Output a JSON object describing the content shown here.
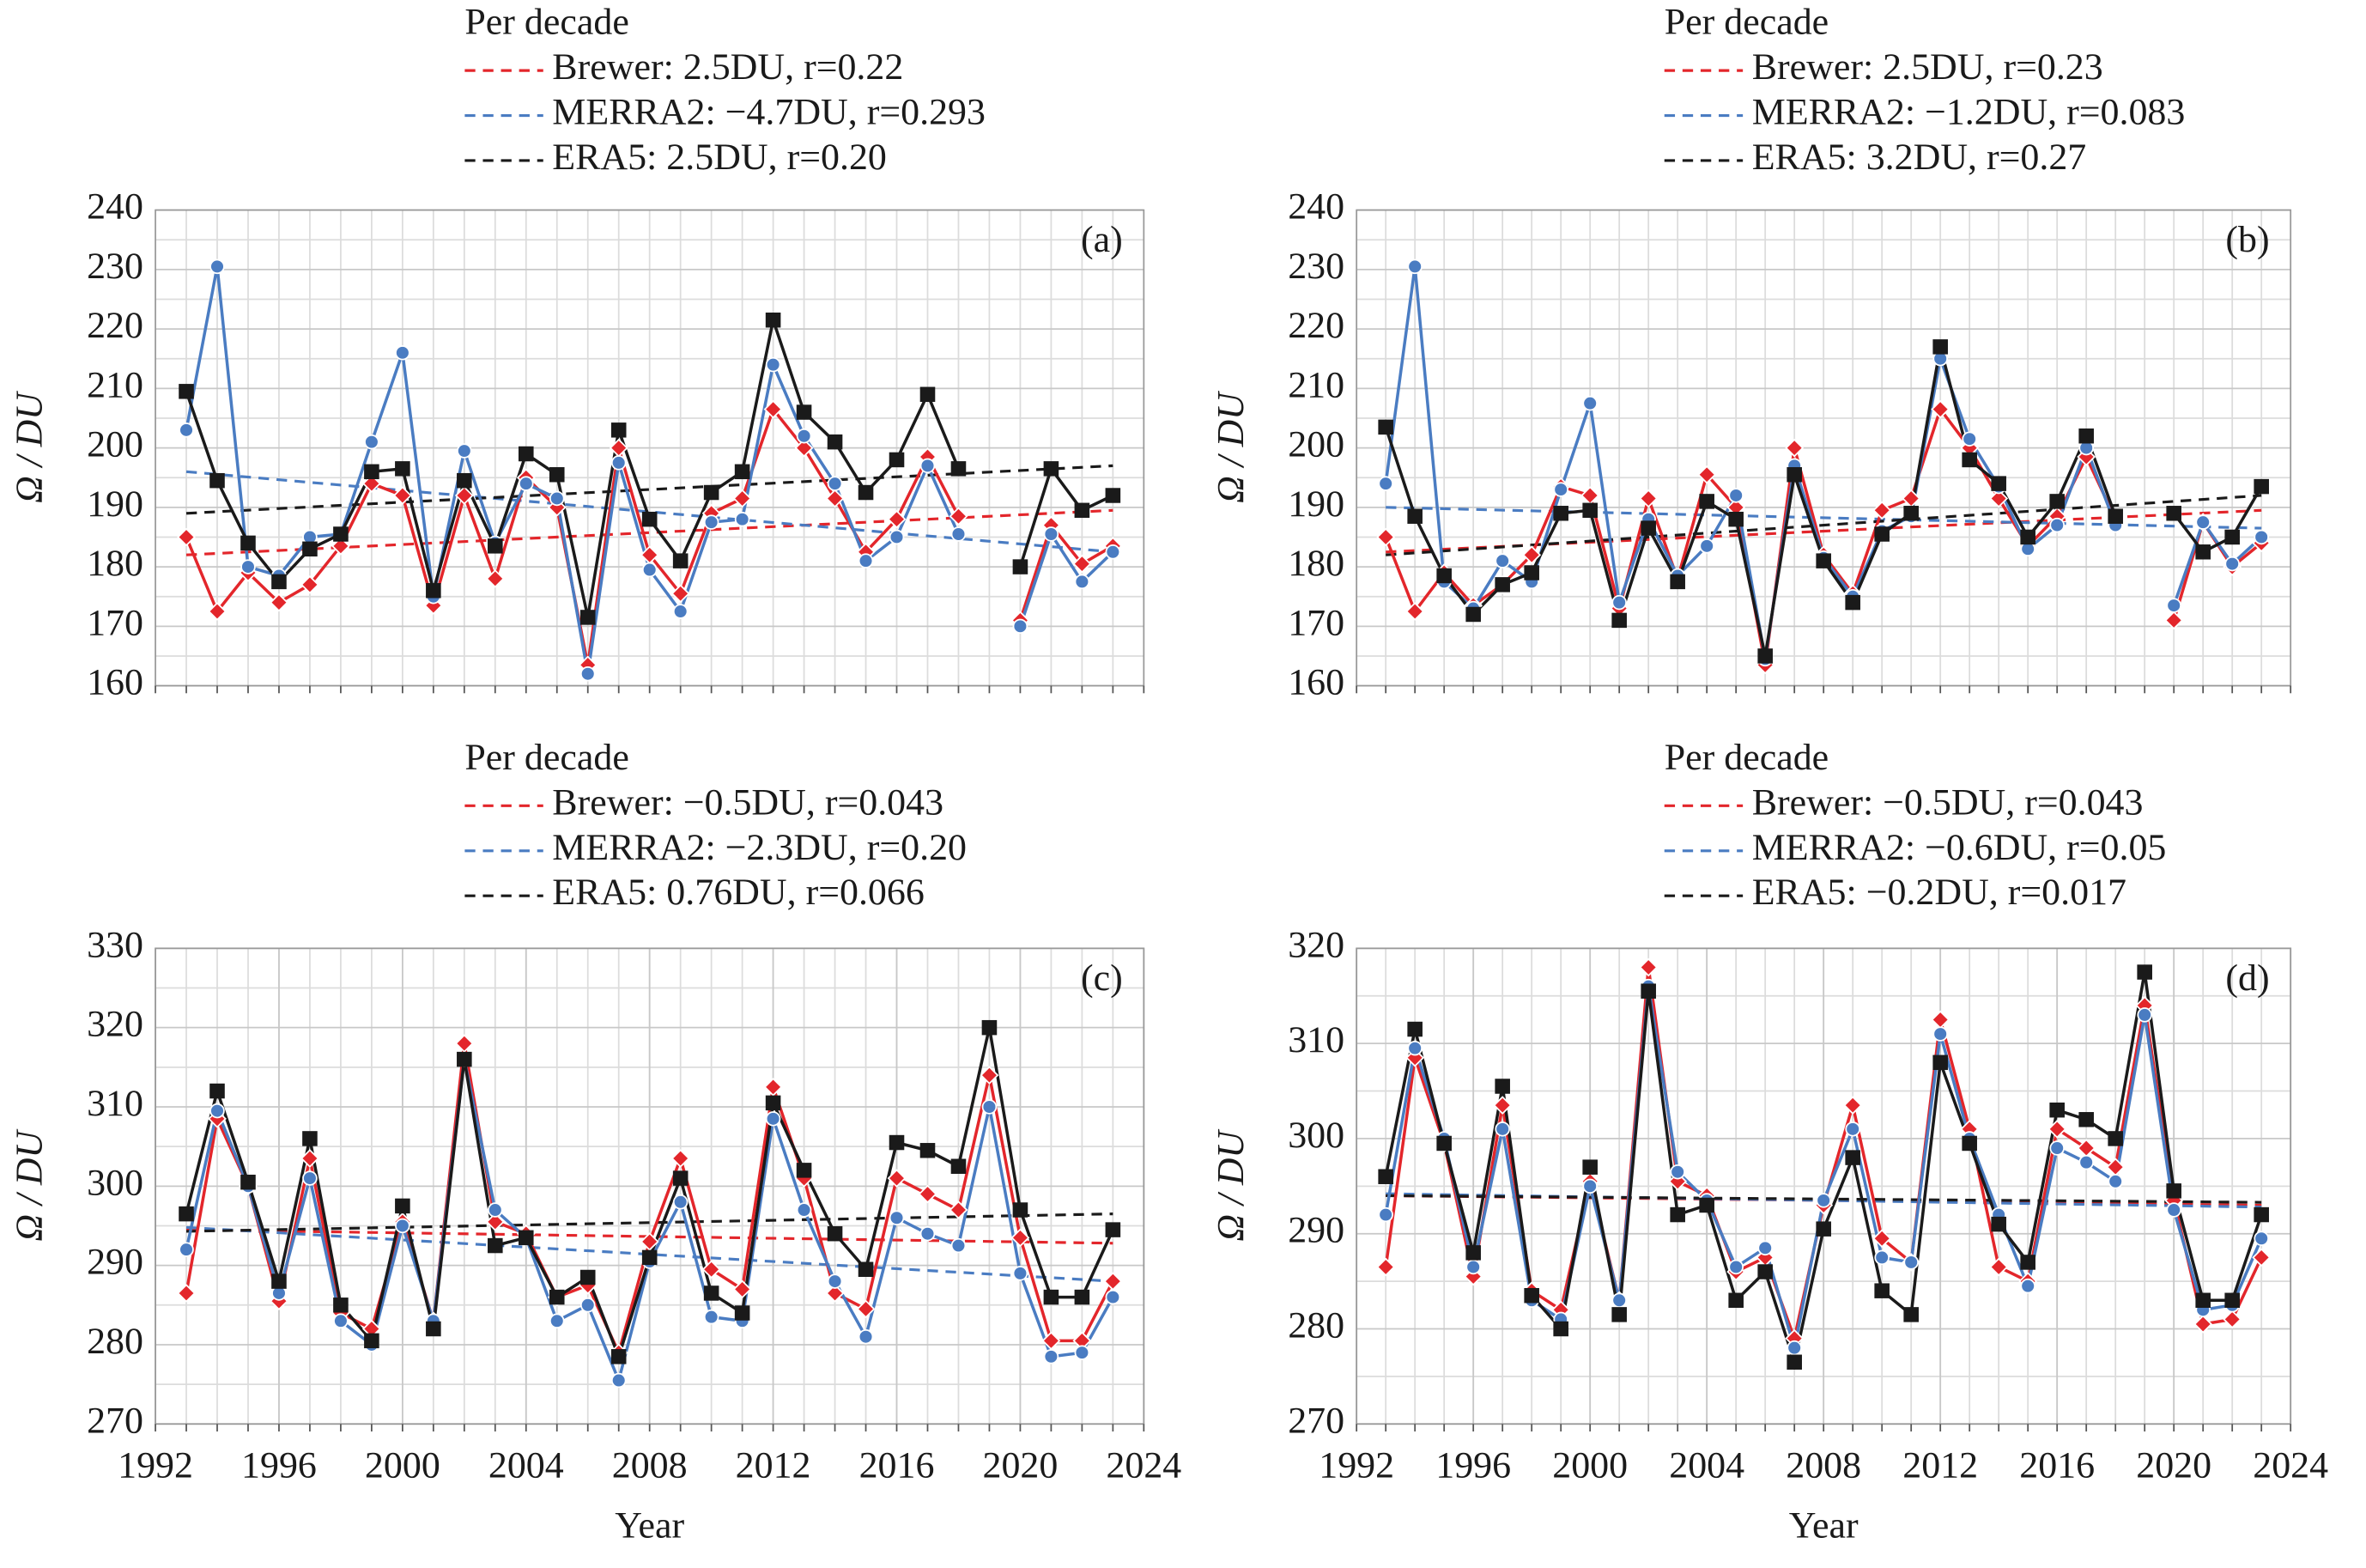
{
  "chart_data": [
    {
      "type": "line",
      "panel_label": "(a)",
      "legend_title": "Per decade",
      "ylabel": "Ω / DU",
      "x": [
        1993,
        1994,
        1995,
        1996,
        1997,
        1998,
        1999,
        2000,
        2001,
        2002,
        2003,
        2004,
        2005,
        2006,
        2007,
        2008,
        2009,
        2010,
        2011,
        2012,
        2013,
        2014,
        2015,
        2016,
        2017,
        2018,
        2019,
        2020,
        2021,
        2022,
        2023
      ],
      "xlim": [
        1992,
        2024
      ],
      "ylim": [
        160,
        240
      ],
      "yticks": [
        160,
        170,
        180,
        190,
        200,
        210,
        220,
        230,
        240
      ],
      "grid": true,
      "series": [
        {
          "label": "Brewer: 2.5DU, r=0.22",
          "color": "#e3262b",
          "marker": "diamond",
          "trend": [
            182,
            189.5
          ],
          "values": [
            185,
            172.5,
            179,
            174,
            177,
            183.5,
            194,
            192,
            173.5,
            192,
            178,
            195,
            190,
            163.5,
            200,
            182,
            175.5,
            189,
            191.5,
            206.5,
            200,
            191.5,
            182.5,
            188,
            198.5,
            188.5,
            null,
            171,
            187,
            180.5,
            183.5
          ]
        },
        {
          "label": "MERRA2: −4.7DU, r=0.293",
          "color": "#4a7cc2",
          "marker": "circle",
          "trend": [
            196,
            182.5
          ],
          "values": [
            203,
            230.5,
            180,
            178.5,
            185,
            185.5,
            201,
            216,
            175,
            199.5,
            184,
            194,
            191.5,
            162,
            197.5,
            179.5,
            172.5,
            187.5,
            188,
            214,
            202,
            194,
            181,
            185,
            197,
            185.5,
            null,
            170,
            185.5,
            177.5,
            182.5
          ]
        },
        {
          "label": "ERA5: 2.5DU, r=0.20",
          "color": "#1a1a1a",
          "marker": "square",
          "trend": [
            189,
            197
          ],
          "values": [
            209.5,
            194.5,
            184,
            177.5,
            183,
            185.5,
            196,
            196.5,
            176,
            194.5,
            183.5,
            199,
            195.5,
            171.5,
            203,
            188,
            181,
            192.5,
            196,
            221.5,
            206,
            201,
            192.5,
            198,
            209,
            196.5,
            null,
            180,
            196.5,
            189.5,
            192
          ]
        }
      ]
    },
    {
      "type": "line",
      "panel_label": "(b)",
      "legend_title": "Per decade",
      "ylabel": "Ω / DU",
      "x": [
        1993,
        1994,
        1995,
        1996,
        1997,
        1998,
        1999,
        2000,
        2001,
        2002,
        2003,
        2004,
        2005,
        2006,
        2007,
        2008,
        2009,
        2010,
        2011,
        2012,
        2013,
        2014,
        2015,
        2016,
        2017,
        2018,
        2019,
        2020,
        2021,
        2022,
        2023
      ],
      "xlim": [
        1992,
        2024
      ],
      "ylim": [
        160,
        240
      ],
      "yticks": [
        160,
        170,
        180,
        190,
        200,
        210,
        220,
        230,
        240
      ],
      "grid": true,
      "series": [
        {
          "label": "Brewer: 2.5DU, r=0.23",
          "color": "#e3262b",
          "marker": "diamond",
          "trend": [
            182.5,
            189.5
          ],
          "values": [
            185,
            172.5,
            179,
            173.5,
            177,
            182,
            193.5,
            192,
            173,
            191.5,
            178,
            195.5,
            190,
            163.5,
            200,
            182,
            175.5,
            189.5,
            191.5,
            206.5,
            200,
            191.5,
            183.5,
            188.5,
            198.5,
            188,
            null,
            171,
            187.5,
            180,
            184
          ]
        },
        {
          "label": "MERRA2: −1.2DU, r=0.083",
          "color": "#4a7cc2",
          "marker": "circle",
          "trend": [
            190,
            186.5
          ],
          "values": [
            194,
            230.5,
            177.5,
            173,
            181,
            177.5,
            193,
            207.5,
            174,
            188,
            178.5,
            183.5,
            192,
            164.5,
            197,
            181.5,
            175,
            186,
            188.5,
            215,
            201.5,
            193.5,
            183,
            187,
            200,
            187,
            null,
            173.5,
            187.5,
            180.5,
            185
          ]
        },
        {
          "label": "ERA5: 3.2DU, r=0.27",
          "color": "#1a1a1a",
          "marker": "square",
          "trend": [
            182,
            192
          ],
          "values": [
            203.5,
            188.5,
            178.5,
            172,
            177,
            179,
            189,
            189.5,
            171,
            186.5,
            177.5,
            191,
            188,
            165,
            195.5,
            181,
            174,
            185.5,
            189,
            217,
            198,
            194,
            185,
            191,
            202,
            188.5,
            null,
            189,
            182.5,
            185,
            193.5
          ]
        }
      ]
    },
    {
      "type": "line",
      "panel_label": "(c)",
      "legend_title": "Per decade",
      "ylabel": "Ω / DU",
      "xlabel": "Year",
      "x": [
        1993,
        1994,
        1995,
        1996,
        1997,
        1998,
        1999,
        2000,
        2001,
        2002,
        2003,
        2004,
        2005,
        2006,
        2007,
        2008,
        2009,
        2010,
        2011,
        2012,
        2013,
        2014,
        2015,
        2016,
        2017,
        2018,
        2019,
        2020,
        2021,
        2022,
        2023
      ],
      "xlim": [
        1992,
        2024
      ],
      "xticks": [
        1992,
        1996,
        2000,
        2004,
        2008,
        2012,
        2016,
        2020,
        2024
      ],
      "ylim": [
        270,
        330
      ],
      "yticks": [
        270,
        280,
        290,
        300,
        310,
        320,
        330
      ],
      "grid": true,
      "series": [
        {
          "label": "Brewer: −0.5DU, r=0.043",
          "color": "#e3262b",
          "marker": "diamond",
          "trend": [
            294.5,
            292.8
          ],
          "values": [
            286.5,
            308.5,
            300,
            285.5,
            303.5,
            284,
            282,
            295.5,
            283,
            318,
            295.5,
            294,
            286,
            287.5,
            279,
            293,
            303.5,
            289.5,
            287,
            312.5,
            301,
            286.5,
            284.5,
            301,
            299,
            297,
            314,
            293.5,
            280.5,
            280.5,
            288
          ]
        },
        {
          "label": "MERRA2: −2.3DU, r=0.20",
          "color": "#4a7cc2",
          "marker": "circle",
          "trend": [
            294.8,
            288
          ],
          "values": [
            292,
            309.5,
            300,
            286.5,
            301,
            283,
            280,
            295,
            283,
            316,
            297,
            293.5,
            283,
            285,
            275.5,
            290.5,
            298,
            283.5,
            283,
            308.5,
            297,
            288,
            281,
            296,
            294,
            292.5,
            310,
            289,
            278.5,
            279,
            286
          ]
        },
        {
          "label": "ERA5: 0.76DU, r=0.066",
          "color": "#1a1a1a",
          "marker": "square",
          "trend": [
            294.3,
            296.5
          ],
          "values": [
            296.5,
            312,
            300.5,
            288,
            306,
            285,
            280.5,
            297.5,
            282,
            316,
            292.5,
            293.5,
            286,
            288.5,
            278.5,
            291,
            301,
            286.5,
            284,
            310.5,
            302,
            294,
            289.5,
            305.5,
            304.5,
            302.5,
            320,
            297,
            286,
            286,
            294.5
          ]
        }
      ]
    },
    {
      "type": "line",
      "panel_label": "(d)",
      "legend_title": "Per decade",
      "ylabel": "Ω / DU",
      "xlabel": "Year",
      "x": [
        1993,
        1994,
        1995,
        1996,
        1997,
        1998,
        1999,
        2000,
        2001,
        2002,
        2003,
        2004,
        2005,
        2006,
        2007,
        2008,
        2009,
        2010,
        2011,
        2012,
        2013,
        2014,
        2015,
        2016,
        2017,
        2018,
        2019,
        2020,
        2021,
        2022,
        2023
      ],
      "xlim": [
        1992,
        2024
      ],
      "xticks": [
        1992,
        1996,
        2000,
        2004,
        2008,
        2012,
        2016,
        2020,
        2024
      ],
      "ylim": [
        270,
        320
      ],
      "yticks": [
        270,
        280,
        290,
        300,
        310,
        320
      ],
      "grid": true,
      "series": [
        {
          "label": "Brewer: −0.5DU, r=0.043",
          "color": "#e3262b",
          "marker": "diamond",
          "trend": [
            294,
            293
          ],
          "values": [
            286.5,
            308.5,
            299.5,
            285.5,
            303.5,
            284,
            282,
            295.5,
            283,
            318,
            295.5,
            294,
            286,
            287.5,
            279,
            293,
            303.5,
            289.5,
            287,
            312.5,
            301,
            286.5,
            285,
            301,
            299,
            297,
            314,
            293.5,
            280.5,
            281,
            287.5
          ]
        },
        {
          "label": "MERRA2: −0.6DU, r=0.05",
          "color": "#4a7cc2",
          "marker": "circle",
          "trend": [
            294.2,
            292.8
          ],
          "values": [
            292,
            309.5,
            300,
            286.5,
            301,
            283,
            281,
            295,
            283,
            316,
            296.5,
            293.5,
            286.5,
            288.5,
            278,
            293.5,
            301,
            287.5,
            287,
            311,
            300,
            292,
            284.5,
            299,
            297.5,
            295.5,
            313,
            292.5,
            282,
            282.5,
            289.5
          ]
        },
        {
          "label": "ERA5: −0.2DU, r=0.017",
          "color": "#1a1a1a",
          "marker": "square",
          "trend": [
            294,
            293.3
          ],
          "values": [
            296,
            311.5,
            299.5,
            288,
            305.5,
            283.5,
            280,
            297,
            281.5,
            315.5,
            292,
            293,
            283,
            286,
            276.5,
            290.5,
            298,
            284,
            281.5,
            308,
            299.5,
            291,
            287,
            303,
            302,
            300,
            317.5,
            294.5,
            283,
            283,
            292
          ]
        }
      ]
    }
  ]
}
